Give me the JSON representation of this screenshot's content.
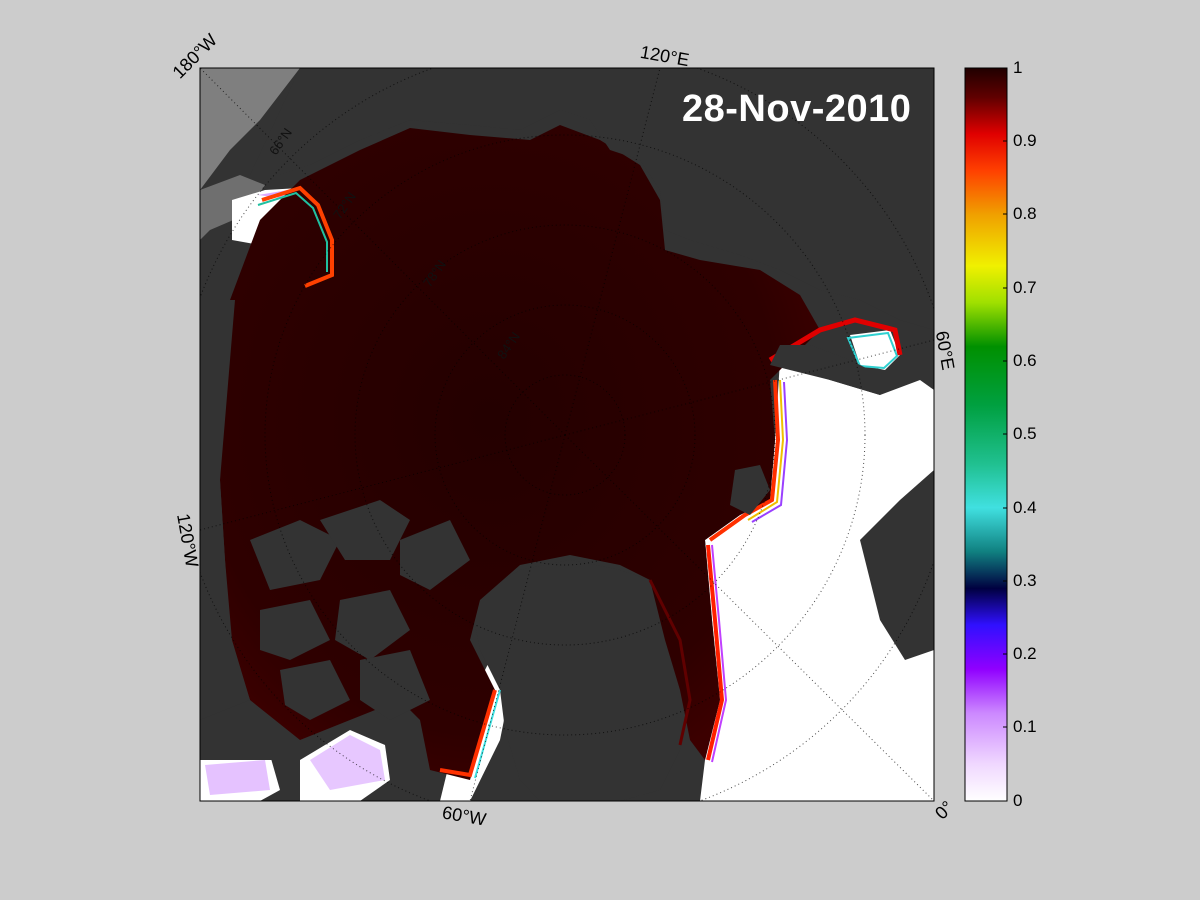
{
  "map": {
    "date": "28-Nov-2010",
    "lon_labels": {
      "w180": "180°W",
      "e120": "120°E",
      "e60": "60°E",
      "w120": "120°W",
      "w60": "60°W",
      "zero": "0°"
    },
    "lat_labels": [
      "66°N",
      "72°N",
      "78°N",
      "84°N"
    ],
    "colors": {
      "background": "#cccccc",
      "land": "#333333",
      "land_outside": "#7f7f7f",
      "open_water": "#ffffff",
      "ice_full": "#2a0000"
    }
  },
  "colorbar": {
    "ticks": [
      "1",
      "0.9",
      "0.8",
      "0.7",
      "0.6",
      "0.5",
      "0.4",
      "0.3",
      "0.2",
      "0.1",
      "0"
    ],
    "range": [
      0,
      1
    ],
    "colormap": "jet-like sea ice concentration"
  }
}
